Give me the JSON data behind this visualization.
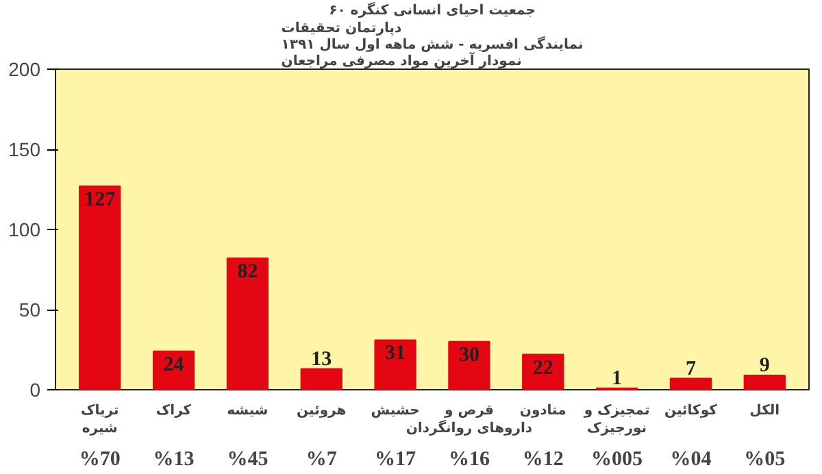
{
  "chart_data": {
    "type": "bar",
    "title": "جمعیت احیای انسانی کنگره ۶۰",
    "subtitle": "دپارتمان تحقیقات\nنمایندگی افسریه - شش ماهه اول سال ۱۳۹۱\nنمودار آخرین مواد مصرفی مراجعان",
    "categories": [
      "تریاک\nشیره",
      "کراک",
      "شیشه",
      "هروئین",
      "حشیش",
      "قرص و\nداروهای روانگردان",
      "متادون",
      "تمجیزک و\nنورجیزک",
      "کوکائین",
      "الکل"
    ],
    "values": [
      127,
      24,
      82,
      13,
      31,
      30,
      22,
      1,
      7,
      9
    ],
    "color": "#e30613",
    "data_labels": true,
    "annotations": [
      "%70",
      "%13",
      "%45",
      "%7",
      "%17",
      "%16",
      "%12",
      "%005",
      "%04",
      "%05"
    ],
    "ylim": [
      0,
      200
    ],
    "yticks": [
      0,
      50,
      100,
      150,
      200
    ],
    "grid": false
  }
}
